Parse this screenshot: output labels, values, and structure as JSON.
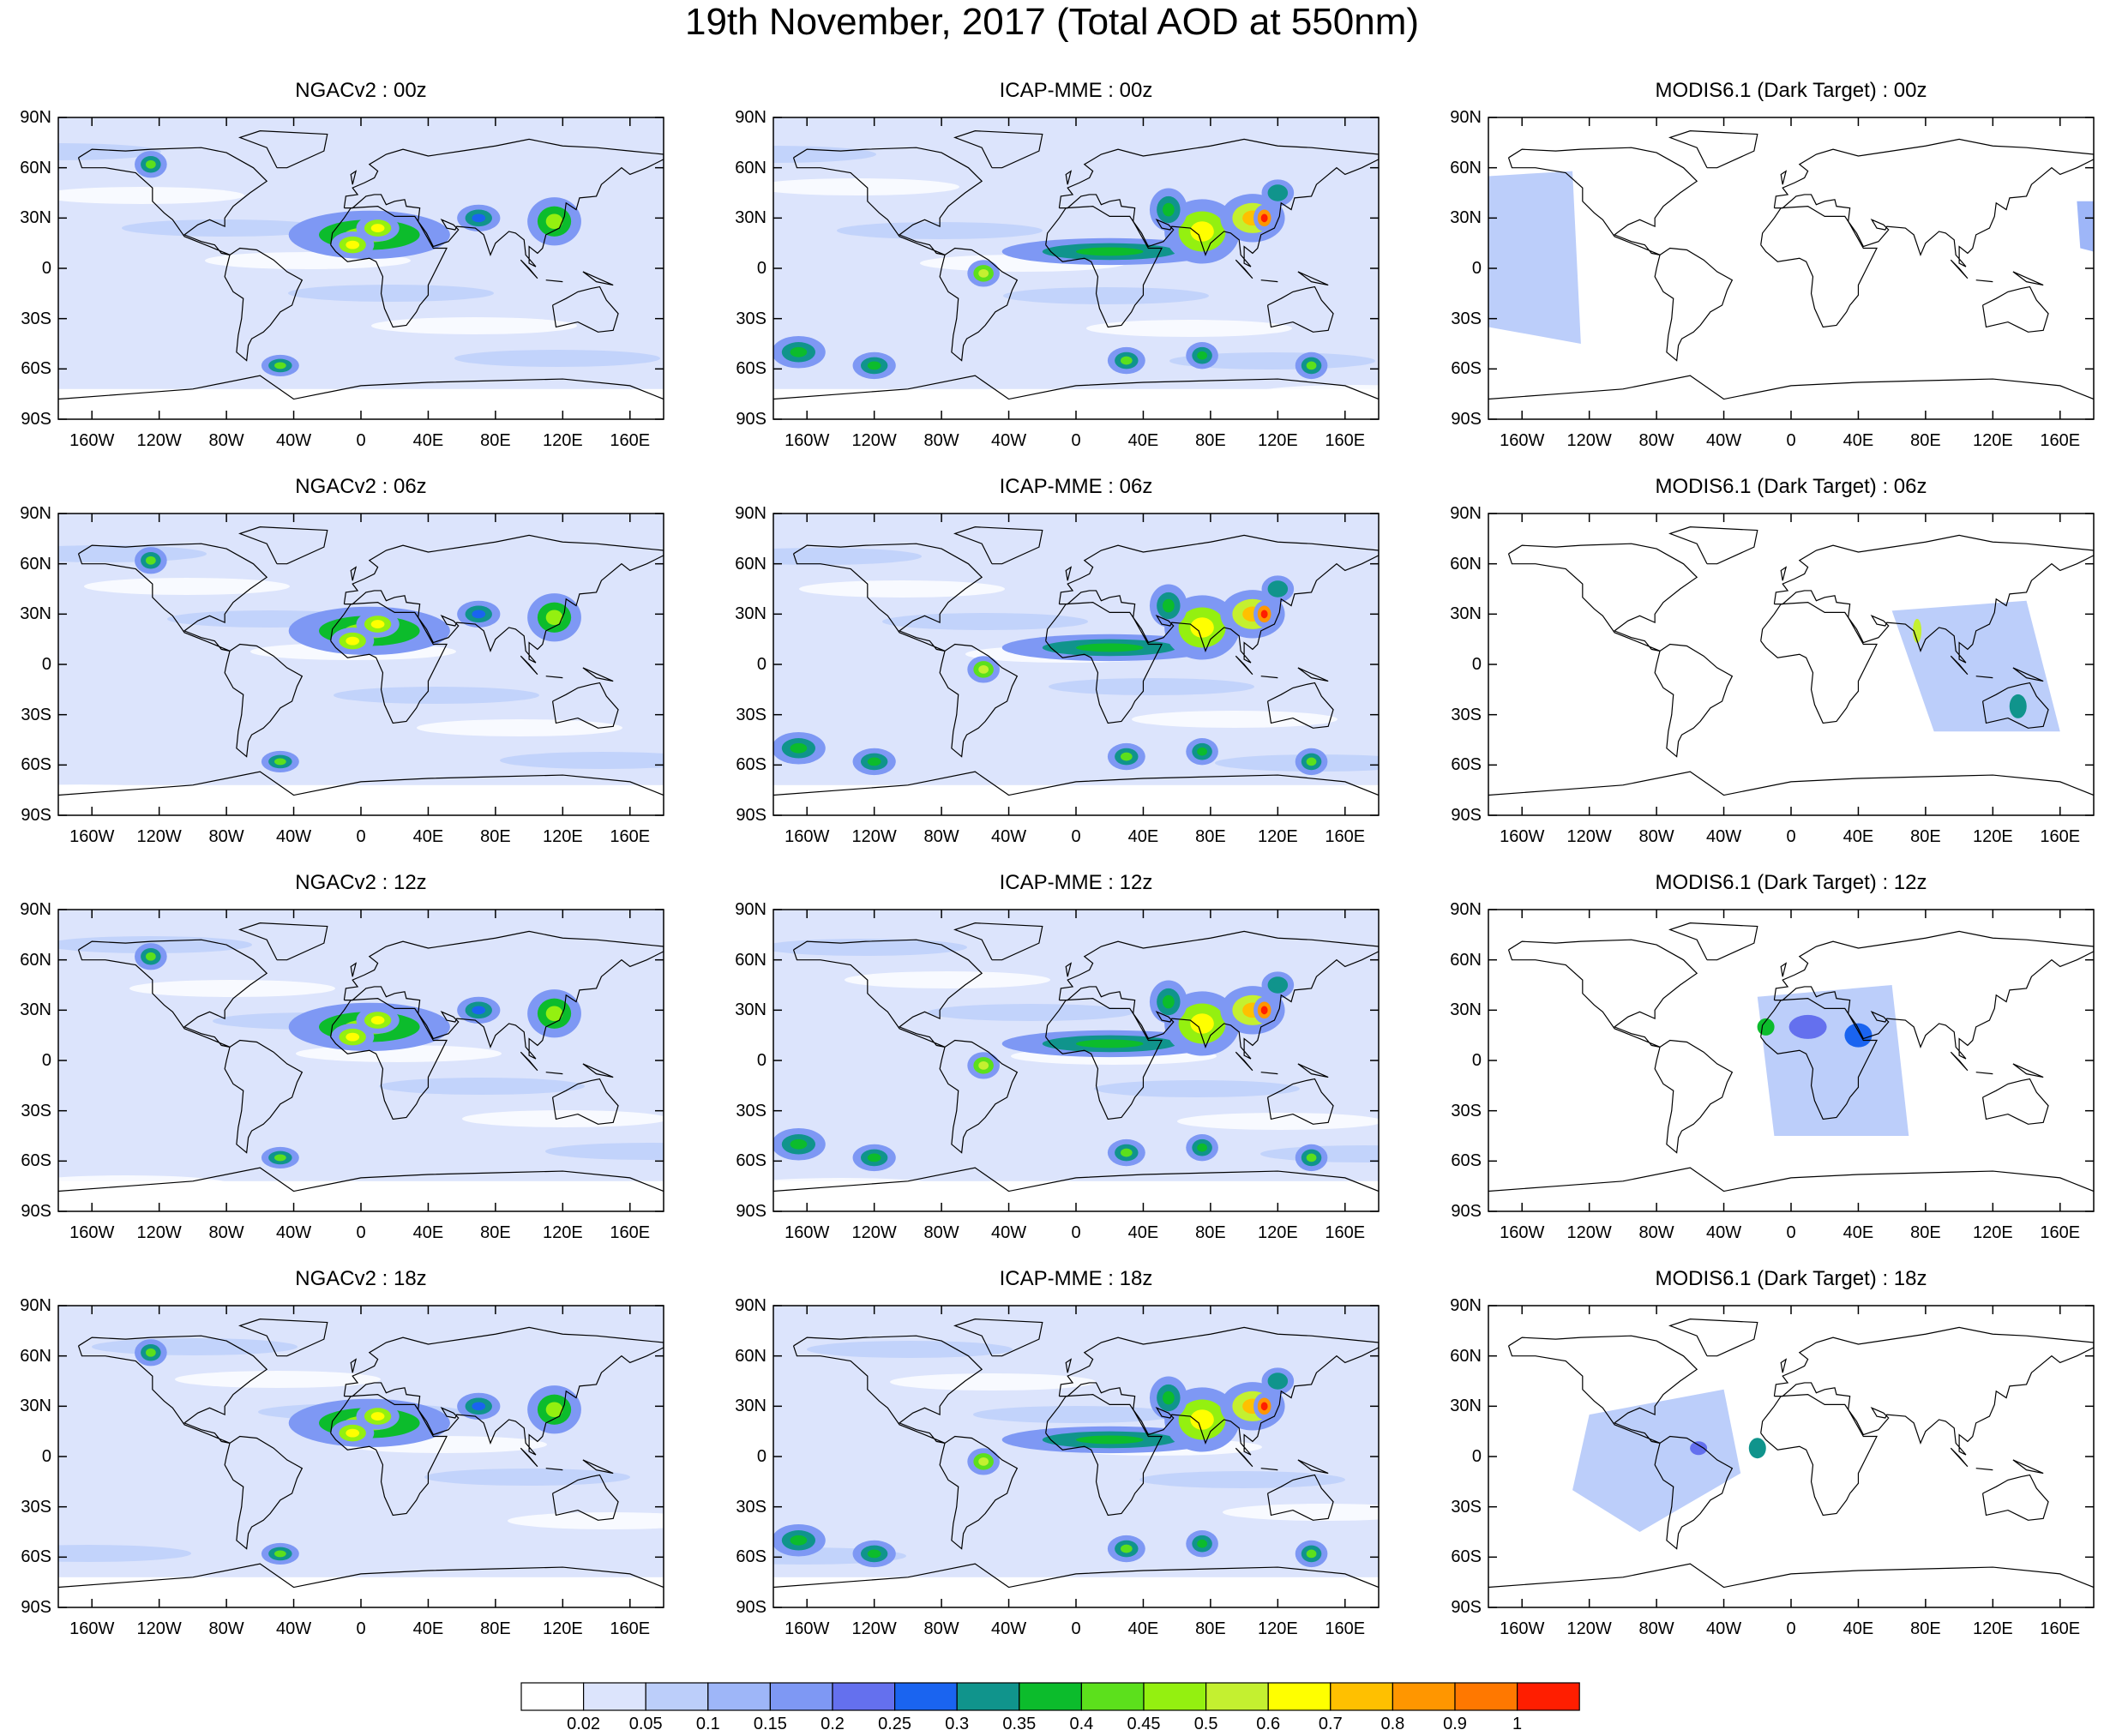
{
  "title": "19th November, 2017 (Total AOD at 550nm)",
  "lat_labels": [
    "90N",
    "60N",
    "30N",
    "0",
    "30S",
    "60S",
    "90S"
  ],
  "lon_labels": [
    "160W",
    "120W",
    "80W",
    "40W",
    "0",
    "40E",
    "80E",
    "120E",
    "160E"
  ],
  "panels": [
    {
      "title": "NGACv2 : 00z",
      "model": "NGACv2",
      "time": "00z"
    },
    {
      "title": "ICAP-MME : 00z",
      "model": "ICAP-MME",
      "time": "00z"
    },
    {
      "title": "MODIS6.1 (Dark Target) : 00z",
      "model": "MODIS6.1",
      "time": "00z"
    },
    {
      "title": "NGACv2 : 06z",
      "model": "NGACv2",
      "time": "06z"
    },
    {
      "title": "ICAP-MME : 06z",
      "model": "ICAP-MME",
      "time": "06z"
    },
    {
      "title": "MODIS6.1 (Dark Target) : 06z",
      "model": "MODIS6.1",
      "time": "06z"
    },
    {
      "title": "NGACv2 : 12z",
      "model": "NGACv2",
      "time": "12z"
    },
    {
      "title": "ICAP-MME : 12z",
      "model": "ICAP-MME",
      "time": "12z"
    },
    {
      "title": "MODIS6.1 (Dark Target) : 12z",
      "model": "MODIS6.1",
      "time": "12z"
    },
    {
      "title": "NGACv2 : 18z",
      "model": "NGACv2",
      "time": "18z"
    },
    {
      "title": "ICAP-MME : 18z",
      "model": "ICAP-MME",
      "time": "18z"
    },
    {
      "title": "MODIS6.1 (Dark Target) : 18z",
      "model": "MODIS6.1",
      "time": "18z"
    }
  ],
  "colorbar": {
    "levels": [
      "0.02",
      "0.05",
      "0.1",
      "0.15",
      "0.2",
      "0.25",
      "0.3",
      "0.35",
      "0.4",
      "0.45",
      "0.5",
      "0.6",
      "0.7",
      "0.8",
      "0.9",
      "1"
    ],
    "colors": [
      "#ffffff",
      "#dce4fc",
      "#bccefa",
      "#9eb6f8",
      "#7e98f4",
      "#6470ee",
      "#1a64f0",
      "#10948c",
      "#0cbc2c",
      "#5ce01c",
      "#94f010",
      "#c4f030",
      "#ffff00",
      "#ffc000",
      "#ff9600",
      "#ff7800",
      "#ff1e00"
    ]
  }
}
